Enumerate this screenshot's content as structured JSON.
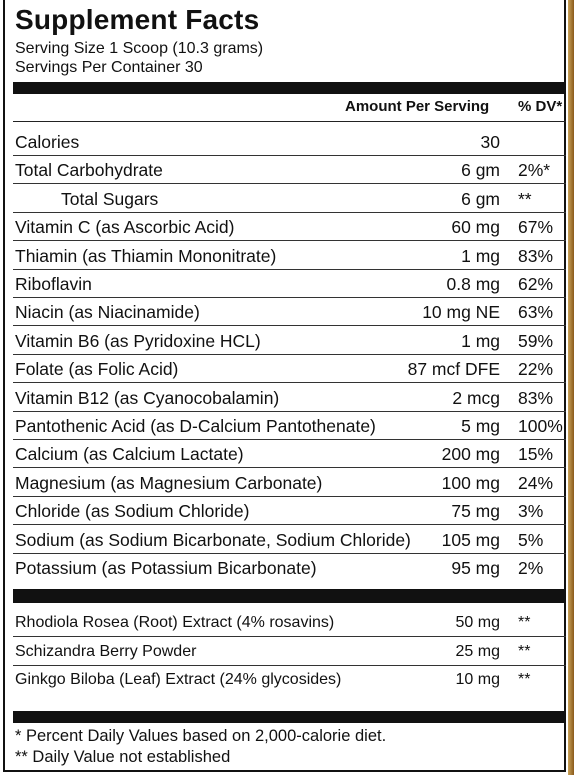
{
  "title": "Supplement Facts",
  "serving_size": "Serving Size 1 Scoop (10.3 grams)",
  "servings_per_container": "Servings Per Container 30",
  "header": {
    "amount": "Amount Per Serving",
    "dv": "% DV*"
  },
  "nutrients": [
    {
      "name": "Calories",
      "amount": "30",
      "dv": ""
    },
    {
      "name": "Total Carbohydrate",
      "amount": "6 gm",
      "dv": "2%*"
    },
    {
      "name": "Total Sugars",
      "amount": "6 gm",
      "dv": "**"
    },
    {
      "name": "Vitamin C (as Ascorbic Acid)",
      "amount": "60 mg",
      "dv": "67%"
    },
    {
      "name": "Thiamin (as Thiamin Mononitrate)",
      "amount": "1 mg",
      "dv": "83%"
    },
    {
      "name": "Riboflavin",
      "amount": "0.8 mg",
      "dv": "62%"
    },
    {
      "name": "Niacin (as Niacinamide)",
      "amount": "10 mg NE",
      "dv": "63%"
    },
    {
      "name": "Vitamin B6 (as Pyridoxine HCL)",
      "amount": "1 mg",
      "dv": "59%"
    },
    {
      "name": "Folate (as Folic Acid)",
      "amount": "87 mcf DFE",
      "dv": "22%"
    },
    {
      "name": "Vitamin B12 (as Cyanocobalamin)",
      "amount": "2 mcg",
      "dv": "83%"
    },
    {
      "name": "Pantothenic Acid (as D-Calcium Pantothenate)",
      "amount": "5 mg",
      "dv": "100%"
    },
    {
      "name": "Calcium (as Calcium Lactate)",
      "amount": "200 mg",
      "dv": "15%"
    },
    {
      "name": "Magnesium (as Magnesium Carbonate)",
      "amount": "100 mg",
      "dv": "24%"
    },
    {
      "name": "Chloride (as Sodium Chloride)",
      "amount": "75 mg",
      "dv": "3%"
    },
    {
      "name": "Sodium (as Sodium Bicarbonate, Sodium Chloride)",
      "amount": "105 mg",
      "dv": "5%"
    },
    {
      "name": "Potassium (as Potassium Bicarbonate)",
      "amount": "95 mg",
      "dv": "2%"
    }
  ],
  "botanicals": [
    {
      "name": "Rhodiola Rosea (Root) Extract (4% rosavins)",
      "amount": "50 mg",
      "dv": "**"
    },
    {
      "name": "Schizandra Berry Powder",
      "amount": "25 mg",
      "dv": "**"
    },
    {
      "name": "Ginkgo Biloba (Leaf) Extract (24% glycosides)",
      "amount": "10 mg",
      "dv": "**"
    }
  ],
  "footnotes": {
    "dv_note": "* Percent Daily Values based on 2,000-calorie diet.",
    "not_established": "** Daily Value not established"
  }
}
